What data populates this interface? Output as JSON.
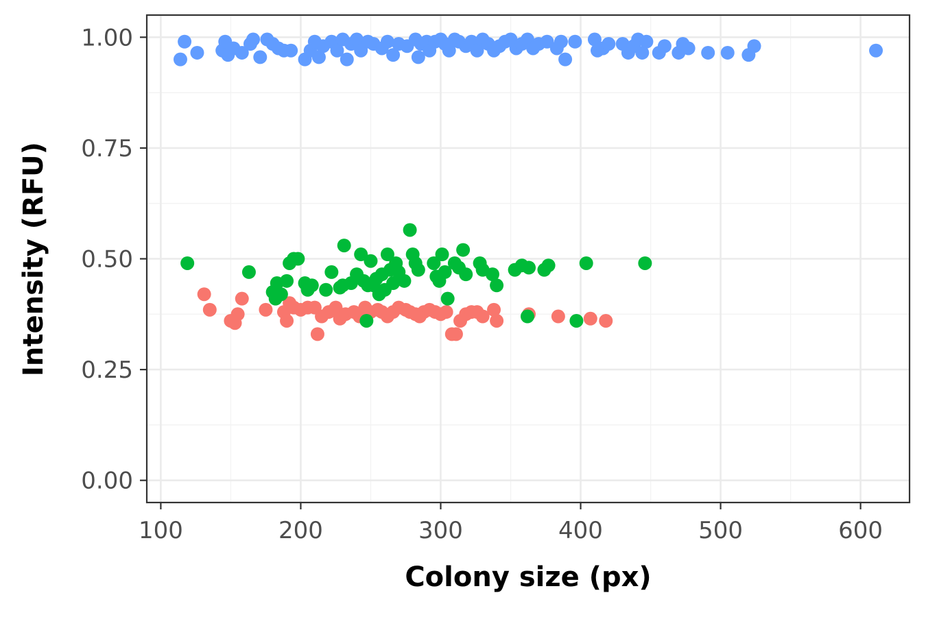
{
  "chart_data": {
    "type": "scatter",
    "title": "",
    "xlabel": "Colony size (px)",
    "ylabel": "Intensity (RFU)",
    "xlim": [
      90,
      635
    ],
    "ylim": [
      -0.05,
      1.05
    ],
    "x_ticks": [
      100,
      200,
      300,
      400,
      500,
      600
    ],
    "x_tick_labels": [
      "100",
      "200",
      "300",
      "400",
      "500",
      "600"
    ],
    "y_ticks": [
      0,
      0.25,
      0.5,
      0.75,
      1.0
    ],
    "y_tick_labels": [
      "0.00",
      "0.25",
      "0.50",
      "0.75",
      "1.00"
    ],
    "grid": true,
    "legend": "none",
    "series": [
      {
        "color": "#F8766D",
        "points": [
          [
            131,
            0.42
          ],
          [
            135,
            0.385
          ],
          [
            150,
            0.36
          ],
          [
            153,
            0.355
          ],
          [
            155,
            0.375
          ],
          [
            158,
            0.41
          ],
          [
            175,
            0.385
          ],
          [
            188,
            0.38
          ],
          [
            190,
            0.36
          ],
          [
            192,
            0.4
          ],
          [
            195,
            0.39
          ],
          [
            200,
            0.385
          ],
          [
            205,
            0.39
          ],
          [
            210,
            0.39
          ],
          [
            212,
            0.33
          ],
          [
            215,
            0.37
          ],
          [
            220,
            0.38
          ],
          [
            225,
            0.39
          ],
          [
            228,
            0.365
          ],
          [
            232,
            0.375
          ],
          [
            238,
            0.38
          ],
          [
            242,
            0.37
          ],
          [
            246,
            0.39
          ],
          [
            250,
            0.38
          ],
          [
            255,
            0.385
          ],
          [
            258,
            0.38
          ],
          [
            262,
            0.37
          ],
          [
            266,
            0.38
          ],
          [
            270,
            0.39
          ],
          [
            275,
            0.385
          ],
          [
            278,
            0.38
          ],
          [
            282,
            0.375
          ],
          [
            285,
            0.37
          ],
          [
            288,
            0.38
          ],
          [
            292,
            0.385
          ],
          [
            296,
            0.38
          ],
          [
            300,
            0.375
          ],
          [
            304,
            0.38
          ],
          [
            308,
            0.33
          ],
          [
            311,
            0.33
          ],
          [
            314,
            0.36
          ],
          [
            318,
            0.375
          ],
          [
            322,
            0.38
          ],
          [
            326,
            0.38
          ],
          [
            330,
            0.37
          ],
          [
            338,
            0.385
          ],
          [
            340,
            0.36
          ],
          [
            363,
            0.375
          ],
          [
            384,
            0.37
          ],
          [
            407,
            0.365
          ],
          [
            418,
            0.36
          ]
        ]
      },
      {
        "color": "#00BA38",
        "points": [
          [
            119,
            0.49
          ],
          [
            163,
            0.47
          ],
          [
            180,
            0.425
          ],
          [
            182,
            0.41
          ],
          [
            183,
            0.445
          ],
          [
            186,
            0.42
          ],
          [
            190,
            0.45
          ],
          [
            192,
            0.49
          ],
          [
            195,
            0.5
          ],
          [
            198,
            0.5
          ],
          [
            203,
            0.445
          ],
          [
            205,
            0.43
          ],
          [
            208,
            0.44
          ],
          [
            218,
            0.43
          ],
          [
            222,
            0.47
          ],
          [
            228,
            0.435
          ],
          [
            230,
            0.44
          ],
          [
            231,
            0.53
          ],
          [
            236,
            0.445
          ],
          [
            240,
            0.465
          ],
          [
            243,
            0.51
          ],
          [
            245,
            0.45
          ],
          [
            247,
            0.36
          ],
          [
            248,
            0.44
          ],
          [
            250,
            0.495
          ],
          [
            252,
            0.44
          ],
          [
            254,
            0.455
          ],
          [
            256,
            0.42
          ],
          [
            258,
            0.465
          ],
          [
            260,
            0.43
          ],
          [
            262,
            0.51
          ],
          [
            264,
            0.475
          ],
          [
            266,
            0.445
          ],
          [
            268,
            0.49
          ],
          [
            270,
            0.47
          ],
          [
            274,
            0.45
          ],
          [
            278,
            0.565
          ],
          [
            280,
            0.51
          ],
          [
            282,
            0.49
          ],
          [
            284,
            0.475
          ],
          [
            295,
            0.49
          ],
          [
            297,
            0.46
          ],
          [
            299,
            0.45
          ],
          [
            301,
            0.51
          ],
          [
            303,
            0.47
          ],
          [
            305,
            0.41
          ],
          [
            310,
            0.49
          ],
          [
            313,
            0.48
          ],
          [
            316,
            0.52
          ],
          [
            318,
            0.465
          ],
          [
            328,
            0.49
          ],
          [
            330,
            0.475
          ],
          [
            337,
            0.465
          ],
          [
            340,
            0.44
          ],
          [
            353,
            0.475
          ],
          [
            358,
            0.485
          ],
          [
            362,
            0.37
          ],
          [
            363,
            0.48
          ],
          [
            374,
            0.475
          ],
          [
            377,
            0.485
          ],
          [
            397,
            0.36
          ],
          [
            404,
            0.49
          ],
          [
            446,
            0.49
          ]
        ]
      },
      {
        "color": "#619CFF",
        "points": [
          [
            114,
            0.95
          ],
          [
            117,
            0.99
          ],
          [
            126,
            0.965
          ],
          [
            144,
            0.97
          ],
          [
            146,
            0.99
          ],
          [
            148,
            0.96
          ],
          [
            152,
            0.975
          ],
          [
            158,
            0.965
          ],
          [
            164,
            0.985
          ],
          [
            166,
            0.995
          ],
          [
            171,
            0.955
          ],
          [
            176,
            0.995
          ],
          [
            180,
            0.985
          ],
          [
            184,
            0.975
          ],
          [
            188,
            0.97
          ],
          [
            193,
            0.97
          ],
          [
            203,
            0.95
          ],
          [
            207,
            0.97
          ],
          [
            210,
            0.99
          ],
          [
            213,
            0.955
          ],
          [
            216,
            0.98
          ],
          [
            222,
            0.99
          ],
          [
            226,
            0.97
          ],
          [
            230,
            0.995
          ],
          [
            233,
            0.95
          ],
          [
            236,
            0.985
          ],
          [
            240,
            0.995
          ],
          [
            243,
            0.97
          ],
          [
            248,
            0.99
          ],
          [
            252,
            0.985
          ],
          [
            258,
            0.975
          ],
          [
            262,
            0.99
          ],
          [
            266,
            0.96
          ],
          [
            270,
            0.985
          ],
          [
            276,
            0.98
          ],
          [
            282,
            0.995
          ],
          [
            284,
            0.955
          ],
          [
            286,
            0.985
          ],
          [
            290,
            0.99
          ],
          [
            292,
            0.97
          ],
          [
            296,
            0.99
          ],
          [
            300,
            0.995
          ],
          [
            303,
            0.985
          ],
          [
            306,
            0.97
          ],
          [
            310,
            0.995
          ],
          [
            313,
            0.99
          ],
          [
            318,
            0.98
          ],
          [
            322,
            0.99
          ],
          [
            326,
            0.97
          ],
          [
            330,
            0.995
          ],
          [
            334,
            0.985
          ],
          [
            338,
            0.97
          ],
          [
            342,
            0.98
          ],
          [
            346,
            0.99
          ],
          [
            350,
            0.995
          ],
          [
            354,
            0.975
          ],
          [
            358,
            0.985
          ],
          [
            362,
            0.995
          ],
          [
            366,
            0.975
          ],
          [
            370,
            0.985
          ],
          [
            376,
            0.99
          ],
          [
            383,
            0.975
          ],
          [
            386,
            0.99
          ],
          [
            389,
            0.95
          ],
          [
            396,
            0.99
          ],
          [
            410,
            0.995
          ],
          [
            412,
            0.97
          ],
          [
            416,
            0.975
          ],
          [
            420,
            0.985
          ],
          [
            430,
            0.985
          ],
          [
            434,
            0.965
          ],
          [
            438,
            0.98
          ],
          [
            441,
            0.995
          ],
          [
            444,
            0.965
          ],
          [
            447,
            0.99
          ],
          [
            456,
            0.965
          ],
          [
            460,
            0.98
          ],
          [
            470,
            0.965
          ],
          [
            473,
            0.985
          ],
          [
            477,
            0.975
          ],
          [
            491,
            0.965
          ],
          [
            505,
            0.965
          ],
          [
            520,
            0.96
          ],
          [
            524,
            0.98
          ],
          [
            611,
            0.97
          ]
        ]
      }
    ]
  }
}
